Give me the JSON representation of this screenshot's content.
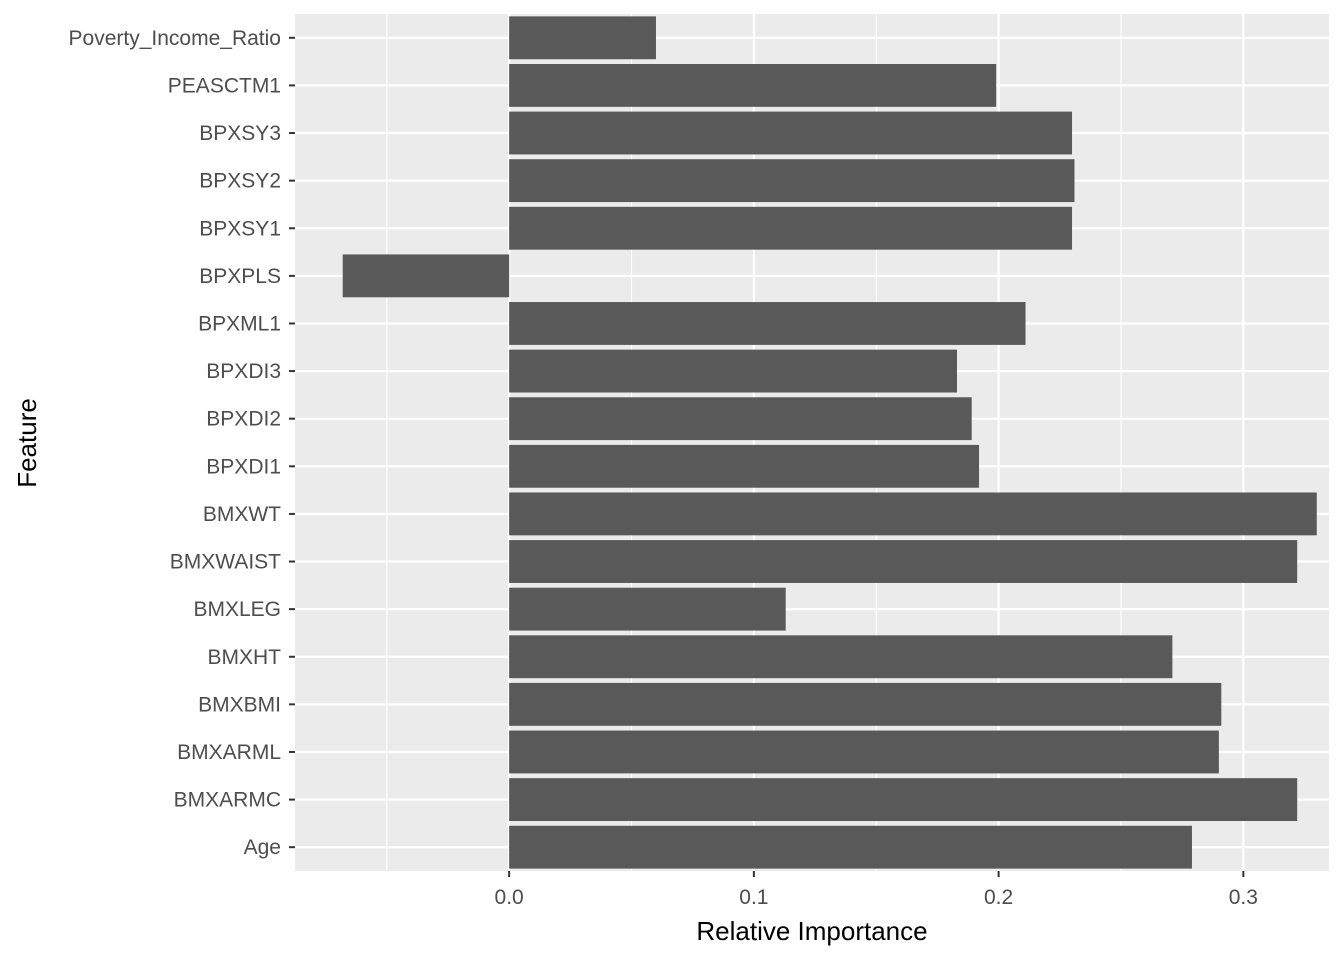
{
  "chart_data": {
    "type": "bar",
    "orientation": "horizontal",
    "title": "",
    "xlabel": "Relative Importance",
    "ylabel": "Feature",
    "xlim": [
      -0.0875,
      0.335
    ],
    "xticks": [
      0.0,
      0.1,
      0.2,
      0.3
    ],
    "xtick_labels": [
      "0.0",
      "0.1",
      "0.2",
      "0.3"
    ],
    "grid": true,
    "categories": [
      "Age",
      "BMXARMC",
      "BMXARML",
      "BMXBMI",
      "BMXHT",
      "BMXLEG",
      "BMXWAIST",
      "BMXWT",
      "BPXDI1",
      "BPXDI2",
      "BPXDI3",
      "BPXML1",
      "BPXPLS",
      "BPXSY1",
      "BPXSY2",
      "BPXSY3",
      "PEASCTM1",
      "Poverty_Income_Ratio"
    ],
    "values": [
      0.279,
      0.322,
      0.29,
      0.291,
      0.271,
      0.113,
      0.322,
      0.33,
      0.192,
      0.189,
      0.183,
      0.211,
      -0.068,
      0.23,
      0.231,
      0.23,
      0.199,
      0.06
    ],
    "colors": {
      "panel_background": "#ebebeb",
      "gridline": "#ffffff",
      "bar_fill": "#595959",
      "tick_text": "#4d4d4d",
      "tick_mark": "#333333"
    }
  }
}
